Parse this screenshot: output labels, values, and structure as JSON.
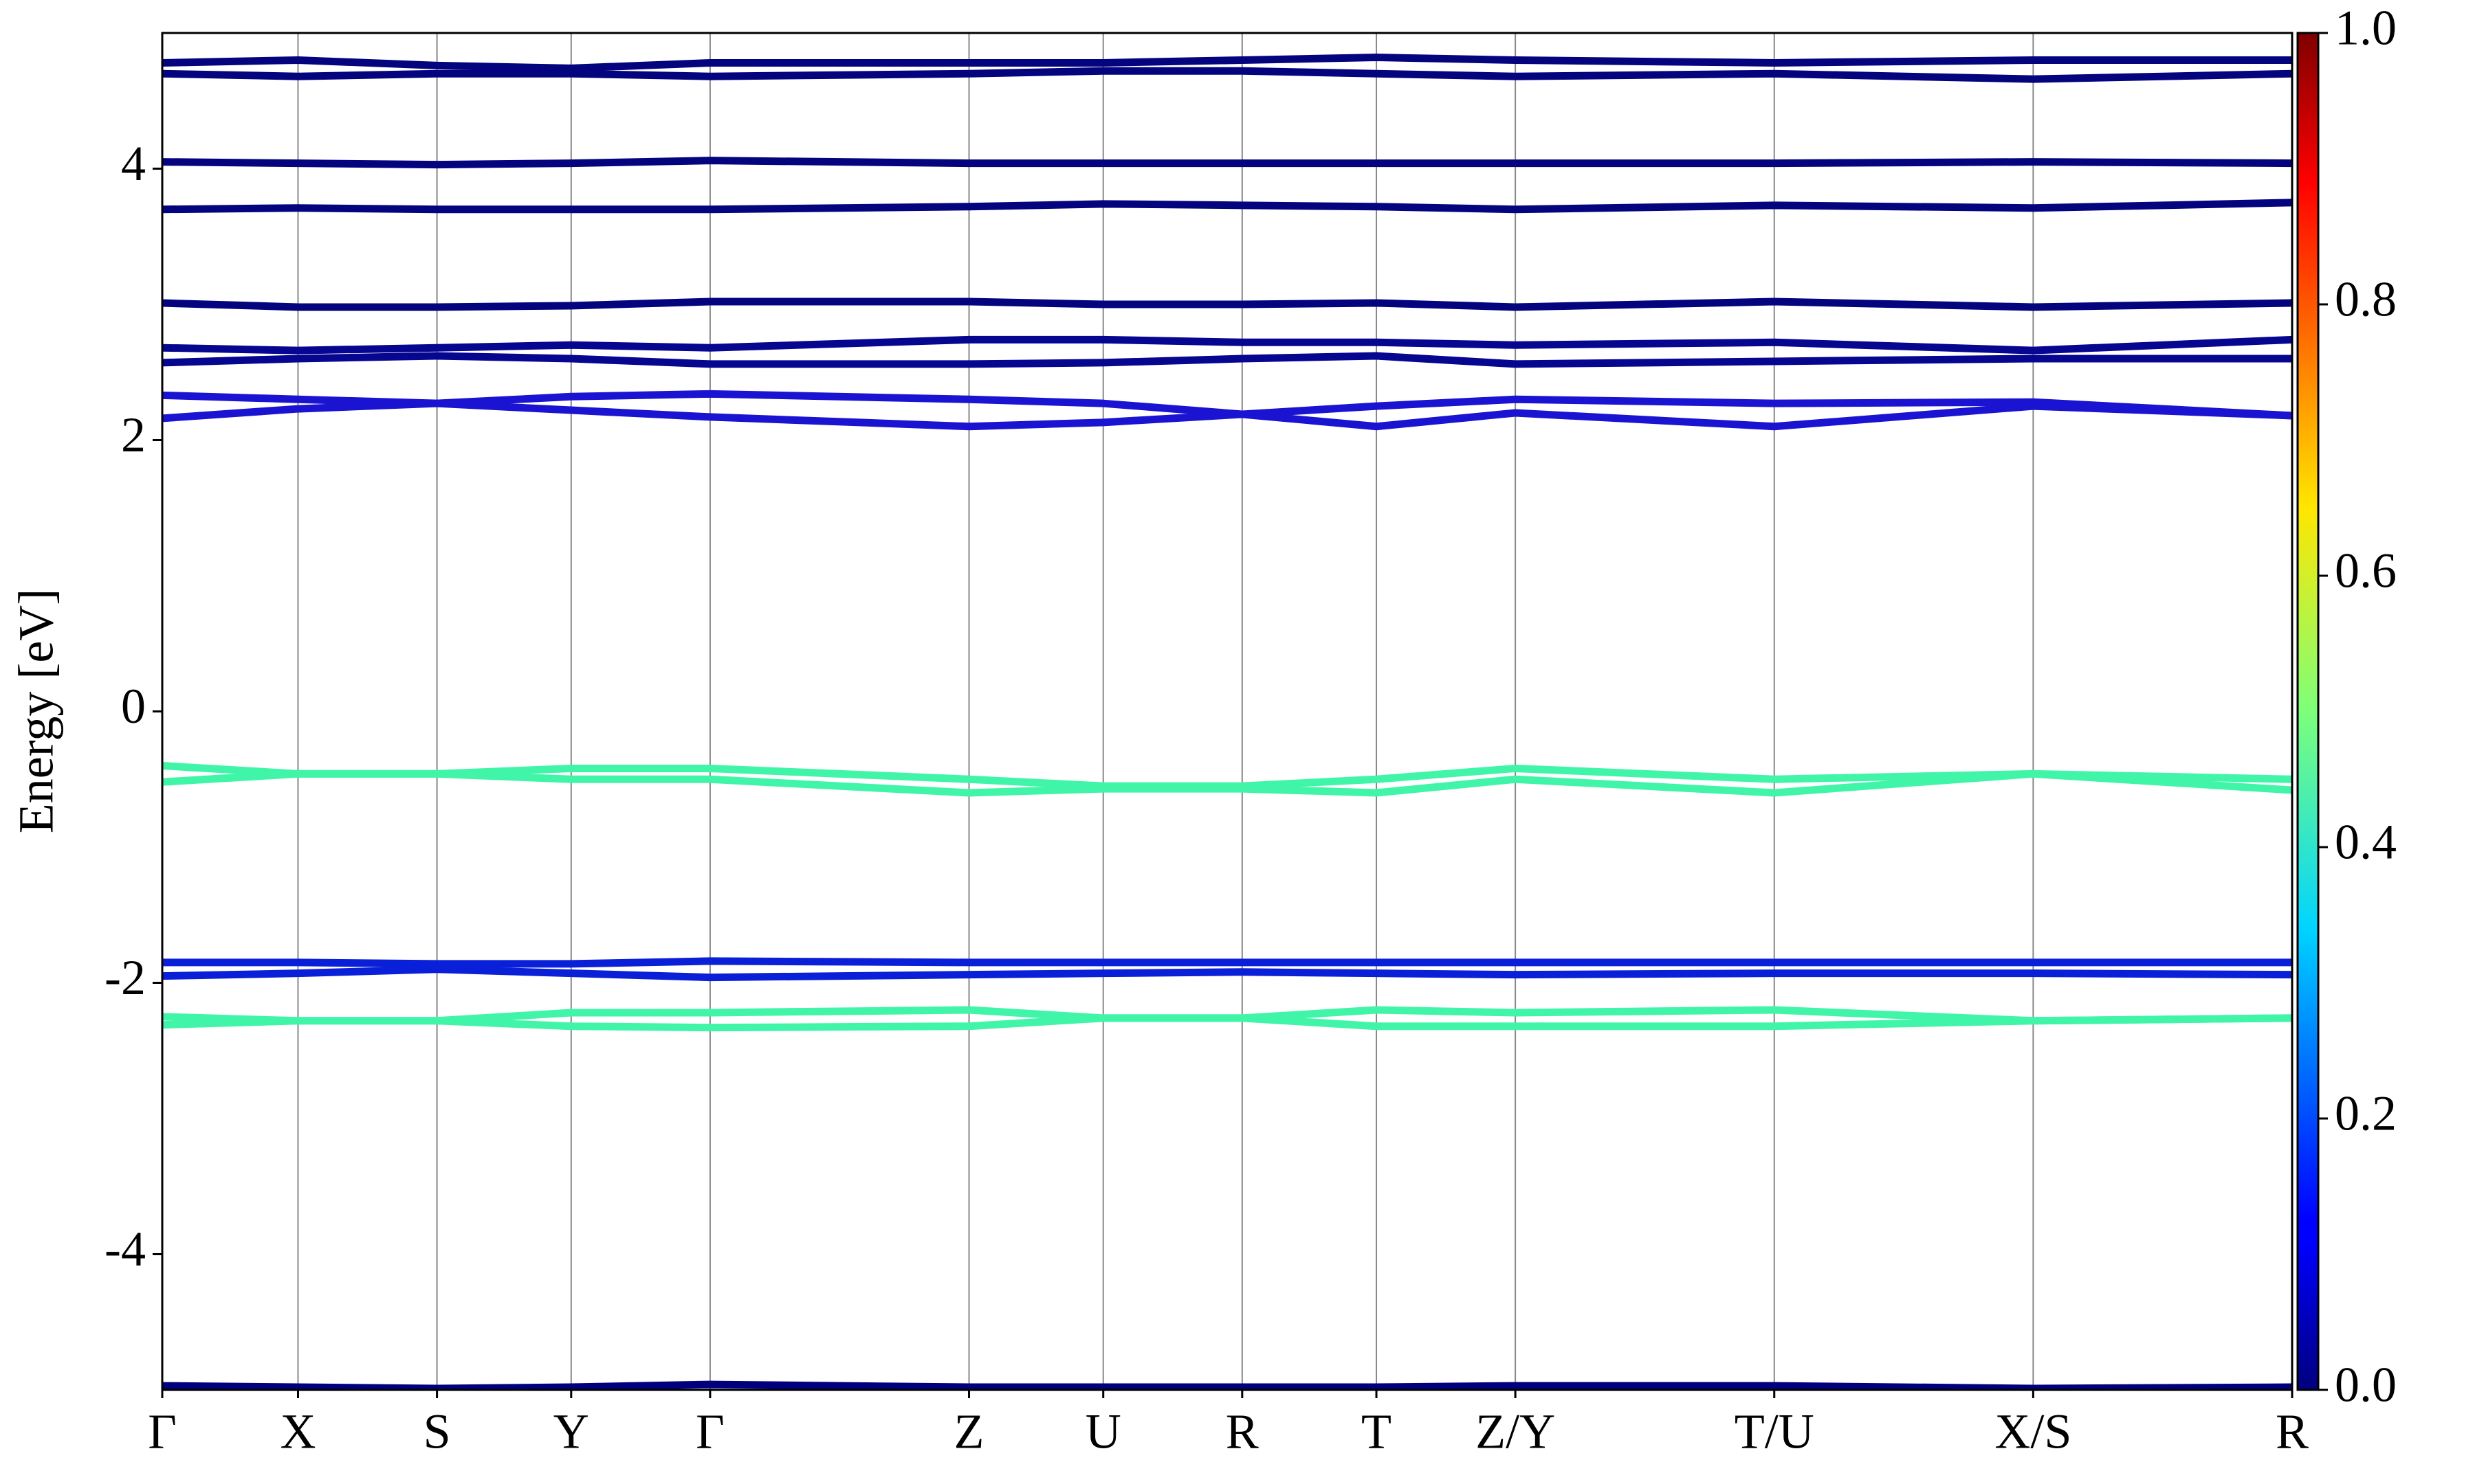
{
  "chart_data": {
    "type": "line",
    "y_label": "Energy [eV]",
    "x": [
      0,
      0.86,
      1.74,
      2.59,
      3.47,
      5.11,
      5.96,
      6.84,
      7.69,
      8.57,
      10.21,
      11.85,
      13.49
    ],
    "xlim": [
      0,
      13.49
    ],
    "xticks": [
      {
        "value": 0,
        "label": "Γ"
      },
      {
        "value": 0.86,
        "label": "X"
      },
      {
        "value": 1.74,
        "label": "S"
      },
      {
        "value": 2.59,
        "label": "Y"
      },
      {
        "value": 3.47,
        "label": "Γ"
      },
      {
        "value": 5.11,
        "label": "Z"
      },
      {
        "value": 5.96,
        "label": "U"
      },
      {
        "value": 6.84,
        "label": "R"
      },
      {
        "value": 7.69,
        "label": "T"
      },
      {
        "value": 8.57,
        "label": "Z/Y"
      },
      {
        "value": 10.21,
        "label": "T/U"
      },
      {
        "value": 11.85,
        "label": "X/S"
      },
      {
        "value": 13.49,
        "label": "R"
      }
    ],
    "ylim": [
      -5,
      5
    ],
    "yticks": [
      -4,
      -2,
      0,
      2,
      4
    ],
    "xgrid": true,
    "series": [
      {
        "color": "#00007f",
        "values": [
          -4.97,
          -4.98,
          -4.99,
          -4.98,
          -4.96,
          -4.98,
          -4.98,
          -4.98,
          -4.98,
          -4.97,
          -4.97,
          -4.99,
          -4.98
        ]
      },
      {
        "color": "#40f5a8",
        "values": [
          -2.25,
          -2.28,
          -2.28,
          -2.22,
          -2.22,
          -2.2,
          -2.26,
          -2.26,
          -2.2,
          -2.22,
          -2.2,
          -2.28,
          -2.26
        ]
      },
      {
        "color": "#40f5a8",
        "values": [
          -2.31,
          -2.28,
          -2.28,
          -2.32,
          -2.33,
          -2.32,
          -2.26,
          -2.26,
          -2.32,
          -2.32,
          -2.32,
          -2.28,
          -2.26
        ]
      },
      {
        "color": "#0a20d8",
        "values": [
          -1.85,
          -1.85,
          -1.86,
          -1.86,
          -1.84,
          -1.85,
          -1.85,
          -1.85,
          -1.85,
          -1.85,
          -1.85,
          -1.85,
          -1.85
        ]
      },
      {
        "color": "#0a20d8",
        "values": [
          -1.95,
          -1.93,
          -1.9,
          -1.93,
          -1.96,
          -1.94,
          -1.93,
          -1.92,
          -1.93,
          -1.94,
          -1.93,
          -1.93,
          -1.94
        ]
      },
      {
        "color": "#40f5a8",
        "values": [
          -0.4,
          -0.46,
          -0.46,
          -0.42,
          -0.42,
          -0.5,
          -0.55,
          -0.55,
          -0.5,
          -0.42,
          -0.5,
          -0.46,
          -0.5
        ]
      },
      {
        "color": "#40f5a8",
        "values": [
          -0.52,
          -0.46,
          -0.46,
          -0.5,
          -0.5,
          -0.6,
          -0.57,
          -0.57,
          -0.6,
          -0.5,
          -0.6,
          -0.46,
          -0.58
        ]
      },
      {
        "color": "#1a14d2",
        "values": [
          2.33,
          2.3,
          2.27,
          2.32,
          2.34,
          2.3,
          2.27,
          2.19,
          2.25,
          2.3,
          2.27,
          2.28,
          2.18
        ]
      },
      {
        "color": "#1a14d2",
        "values": [
          2.16,
          2.23,
          2.27,
          2.22,
          2.17,
          2.1,
          2.13,
          2.19,
          2.1,
          2.2,
          2.1,
          2.25,
          2.18
        ]
      },
      {
        "color": "#060690",
        "values": [
          2.57,
          2.6,
          2.62,
          2.6,
          2.56,
          2.56,
          2.57,
          2.6,
          2.62,
          2.56,
          2.58,
          2.6,
          2.6
        ]
      },
      {
        "color": "#060690",
        "values": [
          2.68,
          2.66,
          2.68,
          2.7,
          2.68,
          2.74,
          2.74,
          2.72,
          2.72,
          2.7,
          2.72,
          2.66,
          2.74
        ]
      },
      {
        "color": "#04047f",
        "values": [
          3.01,
          2.98,
          2.98,
          2.99,
          3.02,
          3.02,
          3.0,
          3.0,
          3.01,
          2.98,
          3.02,
          2.98,
          3.01
        ]
      },
      {
        "color": "#04047f",
        "values": [
          3.7,
          3.71,
          3.7,
          3.7,
          3.7,
          3.72,
          3.74,
          3.73,
          3.72,
          3.7,
          3.73,
          3.71,
          3.75
        ]
      },
      {
        "color": "#04047f",
        "values": [
          4.05,
          4.04,
          4.03,
          4.04,
          4.06,
          4.04,
          4.04,
          4.04,
          4.04,
          4.04,
          4.04,
          4.05,
          4.04
        ]
      },
      {
        "color": "#04047f",
        "values": [
          4.7,
          4.68,
          4.7,
          4.7,
          4.68,
          4.7,
          4.72,
          4.72,
          4.7,
          4.68,
          4.7,
          4.66,
          4.7
        ]
      },
      {
        "color": "#04047f",
        "values": [
          4.78,
          4.8,
          4.76,
          4.74,
          4.78,
          4.78,
          4.78,
          4.8,
          4.82,
          4.8,
          4.78,
          4.8,
          4.8
        ]
      }
    ],
    "colorbar": {
      "clim": [
        0,
        1
      ],
      "ticks": [
        {
          "value": 0,
          "label": "0.0"
        },
        {
          "value": 0.2,
          "label": "0.2"
        },
        {
          "value": 0.4,
          "label": "0.4"
        },
        {
          "value": 0.6,
          "label": "0.6"
        },
        {
          "value": 0.8,
          "label": "0.8"
        },
        {
          "value": 1,
          "label": "1.0"
        }
      ]
    }
  }
}
